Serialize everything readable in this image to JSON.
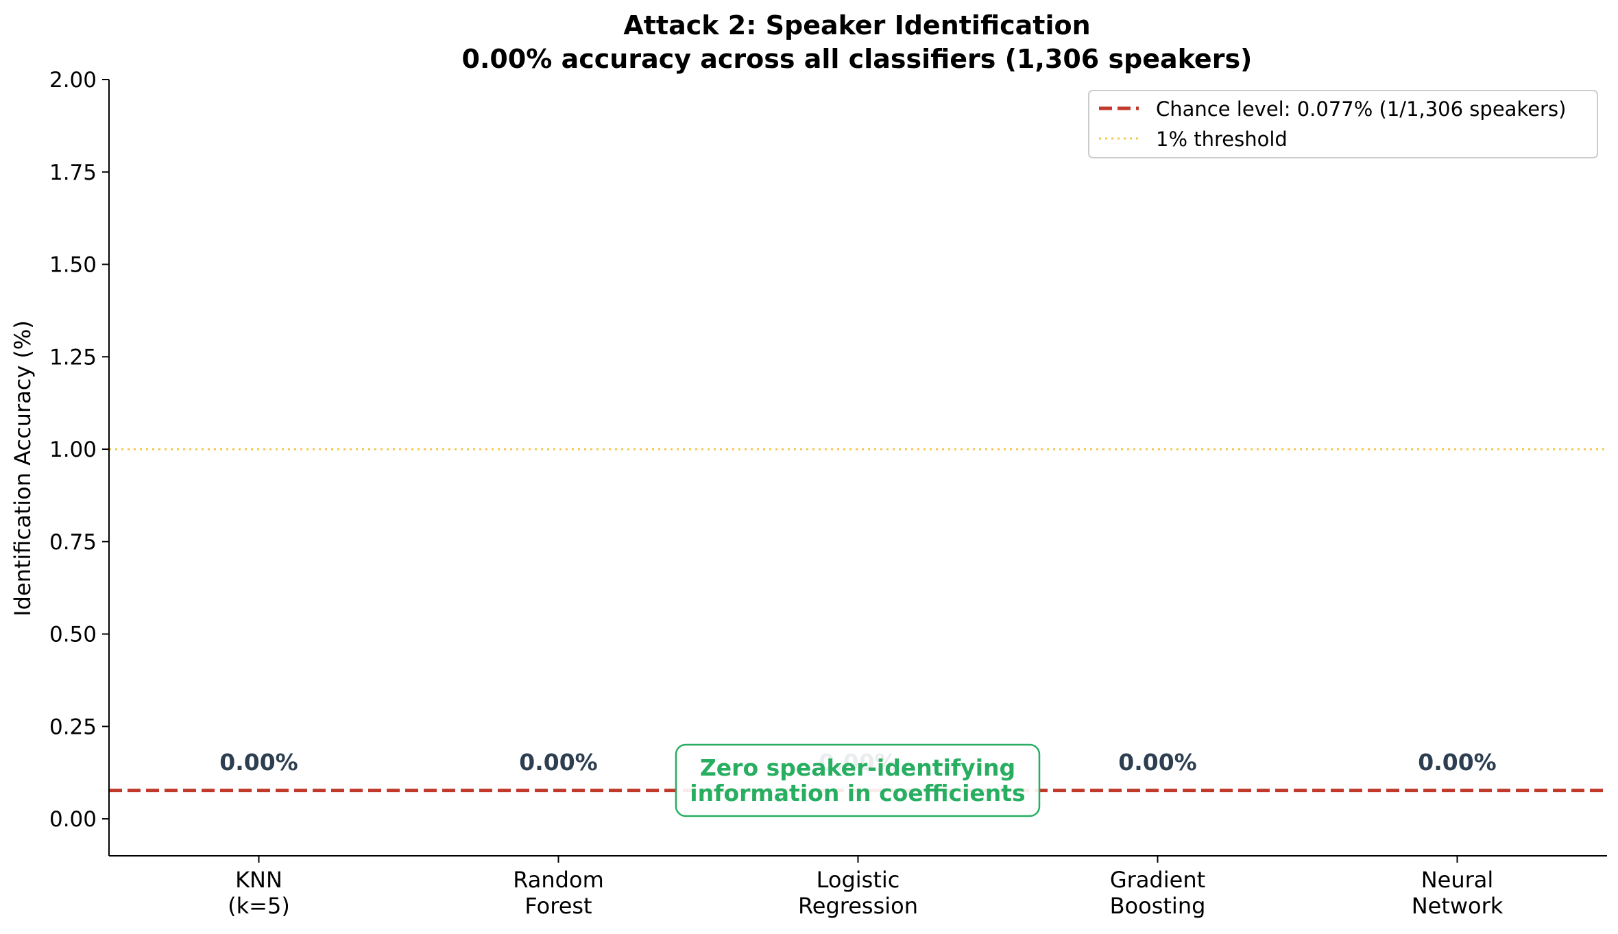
{
  "chart_data": {
    "type": "bar",
    "title_line1": "Attack 2: Speaker Identification",
    "title_line2": "0.00% accuracy across all classifiers (1,306 speakers)",
    "ylabel": "Identification Accuracy (%)",
    "xlabel": "",
    "ylim": [
      -0.1,
      2.0
    ],
    "yticks": [
      {
        "value": 0.0,
        "label": "0.00"
      },
      {
        "value": 0.25,
        "label": "0.25"
      },
      {
        "value": 0.5,
        "label": "0.50"
      },
      {
        "value": 0.75,
        "label": "0.75"
      },
      {
        "value": 1.0,
        "label": "1.00"
      },
      {
        "value": 1.25,
        "label": "1.25"
      },
      {
        "value": 1.5,
        "label": "1.50"
      },
      {
        "value": 1.75,
        "label": "1.75"
      },
      {
        "value": 2.0,
        "label": "2.00"
      }
    ],
    "categories": [
      {
        "line1": "KNN",
        "line2": "(k=5)"
      },
      {
        "line1": "Random",
        "line2": "Forest"
      },
      {
        "line1": "Logistic",
        "line2": "Regression"
      },
      {
        "line1": "Gradient",
        "line2": "Boosting"
      },
      {
        "line1": "Neural",
        "line2": "Network"
      }
    ],
    "values": [
      0.0,
      0.0,
      0.0,
      0.0,
      0.0
    ],
    "data_labels": [
      "0.00%",
      "0.00%",
      "0.00%",
      "0.00%",
      "0.00%"
    ],
    "reference_lines": [
      {
        "value": 0.077,
        "style": "dashed",
        "color": "#c0392b",
        "legend": "Chance level: 0.077% (1/1,306 speakers)"
      },
      {
        "value": 1.0,
        "style": "dotted",
        "color": "#f4c84a",
        "legend": "1% threshold"
      }
    ],
    "annotation": {
      "line1": "Zero speaker-identifying",
      "line2": "information in coefficients",
      "color": "#27ae60"
    },
    "legend_position": "upper right",
    "grid": false,
    "colors": {
      "label_text": "#2c3e50",
      "axis": "#000000"
    }
  }
}
